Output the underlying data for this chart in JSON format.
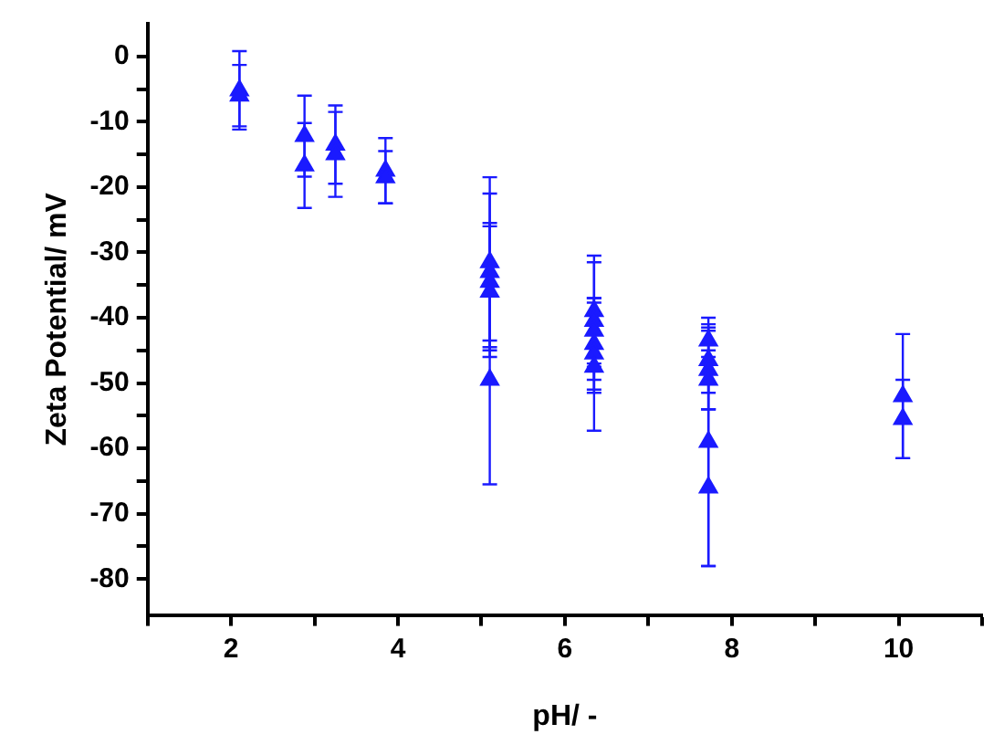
{
  "chart_data": {
    "type": "scatter",
    "xlabel": "pH/ -",
    "ylabel": "Zeta Potential/ mV",
    "xlim": [
      1,
      11
    ],
    "xticks": [
      {
        "value": 1,
        "label": null
      },
      2,
      {
        "value": 3,
        "label": null
      },
      4,
      {
        "value": 5,
        "label": null
      },
      6,
      {
        "value": 7,
        "label": null
      },
      8,
      {
        "value": 9,
        "label": null
      },
      10,
      {
        "value": 11,
        "label": null
      }
    ],
    "ylim": [
      -85.5,
      5
    ],
    "yticks": [
      0,
      {
        "value": -5,
        "label": null
      },
      -10,
      {
        "value": -15,
        "label": null
      },
      -20,
      {
        "value": -25,
        "label": null
      },
      -30,
      {
        "value": -35,
        "label": null
      },
      -40,
      {
        "value": -45,
        "label": null
      },
      -50,
      {
        "value": -55,
        "label": null
      },
      -60,
      {
        "value": -65,
        "label": null
      },
      -70,
      {
        "value": -75,
        "label": null
      },
      -80
    ],
    "grid": false,
    "legend": false,
    "marker": "triangle",
    "series": [
      {
        "color": "#1a1aff",
        "x": [
          2.1,
          2.1,
          2.88,
          2.88,
          3.25,
          3.25,
          3.85,
          3.85,
          5.1,
          5.1,
          5.1,
          5.1,
          5.1,
          6.35,
          6.35,
          6.35,
          6.35,
          6.35,
          6.35,
          7.72,
          7.72,
          7.72,
          7.72,
          7.72,
          7.72,
          10.05,
          10.05
        ],
        "values": [
          -5.2,
          -6,
          -12.2,
          -16.7,
          -13.5,
          -15,
          -17.5,
          -18.5,
          -31.5,
          -33,
          -34.5,
          -36,
          -49.5,
          -39,
          -40.5,
          -42,
          -44,
          -45.5,
          -47.5,
          -43.5,
          -46.5,
          -48,
          -49.5,
          -59,
          -66,
          -52,
          -55.5
        ],
        "errors": [
          6,
          4.7,
          6.2,
          6.5,
          6,
          6.5,
          5,
          4,
          13,
          12,
          9,
          10,
          16,
          8.5,
          9,
          5,
          7,
          6,
          9.8,
          2.5,
          5,
          6,
          4.5,
          19,
          12,
          9.5,
          6
        ]
      }
    ]
  }
}
